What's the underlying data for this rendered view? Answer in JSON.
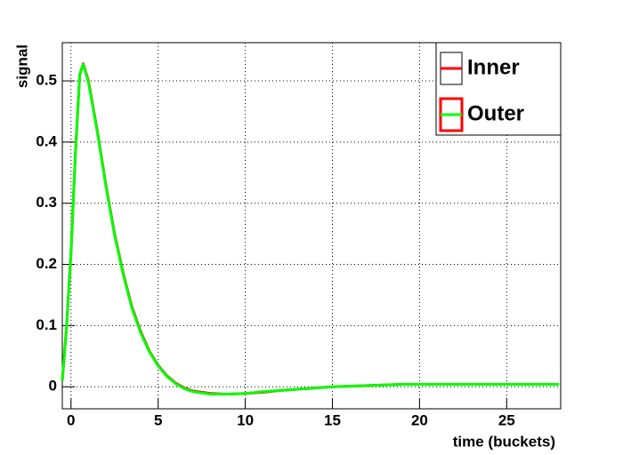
{
  "chart_data": {
    "type": "line",
    "x_label": "time (buckets)",
    "y_label": "signal",
    "x": [
      -0.5,
      -0.25,
      0,
      0.25,
      0.5,
      0.7,
      1,
      1.5,
      2,
      2.5,
      3,
      3.5,
      4,
      4.5,
      5,
      5.5,
      6,
      6.5,
      7,
      8,
      9,
      10,
      11,
      12,
      13,
      14,
      15,
      17,
      19,
      21,
      23,
      25,
      28
    ],
    "series": [
      {
        "name": "Inner",
        "color": "#ff0000",
        "values": [
          0.01,
          0.1,
          0.22,
          0.38,
          0.51,
          0.528,
          0.5,
          0.42,
          0.33,
          0.25,
          0.185,
          0.13,
          0.09,
          0.058,
          0.035,
          0.018,
          0.006,
          -0.002,
          -0.007,
          -0.011,
          -0.012,
          -0.011,
          -0.009,
          -0.006,
          -0.004,
          -0.002,
          0,
          0.002,
          0.004,
          0.004,
          0.004,
          0.004,
          0.004
        ]
      },
      {
        "name": "Outer",
        "color": "#00ff00",
        "values": [
          0.01,
          0.1,
          0.22,
          0.38,
          0.51,
          0.527,
          0.498,
          0.418,
          0.328,
          0.248,
          0.183,
          0.128,
          0.088,
          0.057,
          0.034,
          0.017,
          0.005,
          -0.003,
          -0.008,
          -0.012,
          -0.012,
          -0.011,
          -0.008,
          -0.006,
          -0.004,
          -0.002,
          0,
          0.002,
          0.004,
          0.004,
          0.004,
          0.004,
          0.004
        ]
      }
    ],
    "xlim": [
      -0.5,
      28.1
    ],
    "ylim": [
      -0.036,
      0.5625
    ],
    "xticks": [
      0,
      5,
      10,
      15,
      20,
      25
    ],
    "yticks": [
      0,
      0.1,
      0.2,
      0.3,
      0.4,
      0.5
    ],
    "grid": true,
    "legend": "top-right"
  }
}
